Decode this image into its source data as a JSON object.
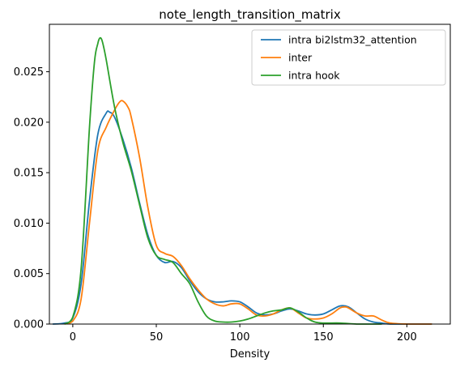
{
  "chart_data": {
    "type": "line",
    "title": "note_length_transition_matrix",
    "xlabel": "Density",
    "ylabel": "",
    "xlim": [
      -14,
      226
    ],
    "ylim": [
      0,
      0.0297
    ],
    "xticks": [
      0,
      50,
      100,
      150,
      200
    ],
    "xtick_labels": [
      "0",
      "50",
      "100",
      "150",
      "200"
    ],
    "yticks": [
      0,
      0.005,
      0.01,
      0.015,
      0.02,
      0.025
    ],
    "ytick_labels": [
      "0.000",
      "0.005",
      "0.010",
      "0.015",
      "0.020",
      "0.025"
    ],
    "grid": false,
    "legend_position": "upper right",
    "series": [
      {
        "name": "intra bi2lstm32_attention",
        "color": "#1f77b4",
        "x": [
          -12,
          -5,
          0,
          5,
          10,
          15,
          20,
          22,
          25,
          30,
          35,
          40,
          45,
          50,
          55,
          60,
          65,
          70,
          75,
          80,
          85,
          90,
          95,
          100,
          105,
          110,
          115,
          120,
          125,
          130,
          135,
          140,
          145,
          150,
          155,
          160,
          165,
          170,
          175,
          180,
          185,
          190,
          200,
          210,
          215
        ],
        "y": [
          0,
          0.0001,
          0.0006,
          0.004,
          0.0122,
          0.0188,
          0.0209,
          0.021,
          0.0205,
          0.0183,
          0.0155,
          0.012,
          0.0088,
          0.0068,
          0.0061,
          0.0062,
          0.0056,
          0.0043,
          0.0032,
          0.0025,
          0.0022,
          0.0022,
          0.0023,
          0.0022,
          0.0017,
          0.0011,
          0.0009,
          0.001,
          0.0013,
          0.0015,
          0.0013,
          0.001,
          0.0009,
          0.001,
          0.0014,
          0.0018,
          0.0017,
          0.0011,
          0.0005,
          0.0002,
          0.0001,
          0,
          0,
          0,
          0
        ]
      },
      {
        "name": "inter",
        "color": "#ff7f0e",
        "x": [
          -5,
          0,
          5,
          10,
          15,
          20,
          25,
          28,
          30,
          33,
          35,
          40,
          45,
          50,
          55,
          60,
          65,
          70,
          75,
          80,
          85,
          90,
          95,
          100,
          105,
          110,
          115,
          120,
          125,
          130,
          135,
          140,
          145,
          150,
          155,
          160,
          163,
          165,
          170,
          175,
          180,
          185,
          190,
          200,
          210,
          215
        ],
        "y": [
          0,
          0.0003,
          0.0025,
          0.01,
          0.0172,
          0.0195,
          0.0212,
          0.022,
          0.0221,
          0.0215,
          0.0205,
          0.0165,
          0.0115,
          0.0078,
          0.007,
          0.0067,
          0.0058,
          0.0045,
          0.0034,
          0.0025,
          0.002,
          0.0018,
          0.002,
          0.002,
          0.0015,
          0.0009,
          0.0008,
          0.001,
          0.0014,
          0.0016,
          0.0011,
          0.0006,
          0.0005,
          0.0006,
          0.001,
          0.0016,
          0.0017,
          0.0016,
          0.0011,
          0.0008,
          0.0008,
          0.0004,
          0.0001,
          0,
          0,
          0
        ]
      },
      {
        "name": "intra hook",
        "color": "#2ca02c",
        "x": [
          -5,
          0,
          5,
          10,
          13,
          15,
          16,
          17,
          18,
          20,
          25,
          30,
          35,
          40,
          45,
          50,
          55,
          60,
          65,
          70,
          75,
          80,
          85,
          90,
          95,
          100,
          105,
          110,
          115,
          120,
          125,
          130,
          135,
          140,
          145,
          150,
          160,
          170,
          180,
          185
        ],
        "y": [
          0,
          0.0007,
          0.0055,
          0.0195,
          0.026,
          0.0278,
          0.0283,
          0.0283,
          0.0278,
          0.0262,
          0.0215,
          0.018,
          0.0152,
          0.0118,
          0.0085,
          0.0068,
          0.0064,
          0.0061,
          0.005,
          0.004,
          0.0022,
          0.0008,
          0.0003,
          0.0002,
          0.0002,
          0.0003,
          0.0005,
          0.0008,
          0.0011,
          0.0013,
          0.0014,
          0.0016,
          0.0012,
          0.0006,
          0.0002,
          0.0001,
          0.0001,
          0,
          0,
          0
        ]
      }
    ]
  }
}
